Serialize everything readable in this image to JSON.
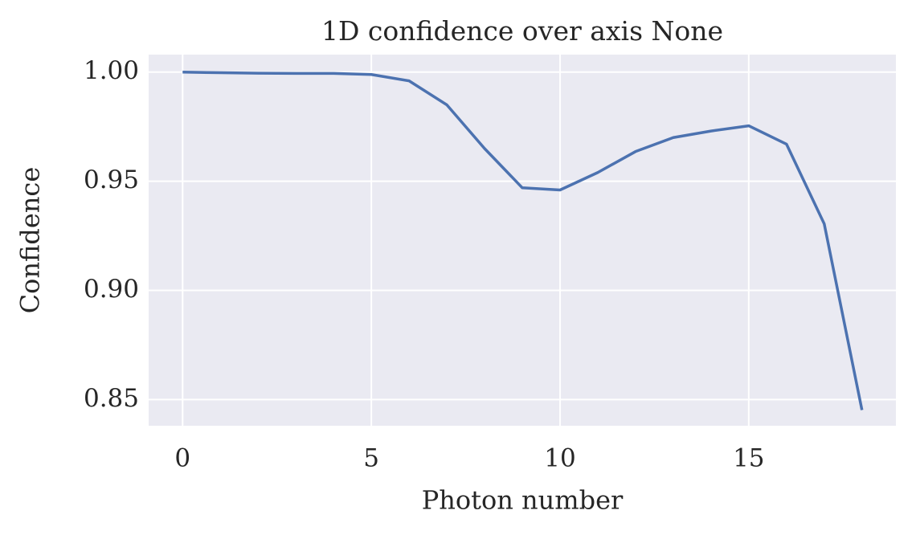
{
  "chart_data": {
    "type": "line",
    "title": "1D confidence over axis None",
    "x_label": "Photon number",
    "y_label": "Confidence",
    "x": [
      0,
      1,
      2,
      3,
      4,
      5,
      6,
      7,
      8,
      9,
      10,
      11,
      12,
      13,
      14,
      15,
      16,
      17,
      18
    ],
    "series": [
      {
        "name": "Confidence",
        "color": "#4c72b0",
        "values": [
          1.0,
          0.9997,
          0.9995,
          0.9994,
          0.9994,
          0.9989,
          0.996,
          0.985,
          0.965,
          0.947,
          0.946,
          0.954,
          0.9636,
          0.97,
          0.973,
          0.9754,
          0.967,
          0.9305,
          0.8452
        ]
      }
    ],
    "xlim": [
      -0.9,
      18.9
    ],
    "xticks": [
      0,
      5,
      10,
      15
    ],
    "ylim": [
      0.838,
      1.008
    ],
    "yticks": [
      {
        "value": 0.85,
        "label": "0.85"
      },
      {
        "value": 0.9,
        "label": "0.90"
      },
      {
        "value": 0.95,
        "label": "0.95"
      },
      {
        "value": 1.0,
        "label": "1.00"
      }
    ],
    "grid": true,
    "background": "#eaeaf2"
  }
}
